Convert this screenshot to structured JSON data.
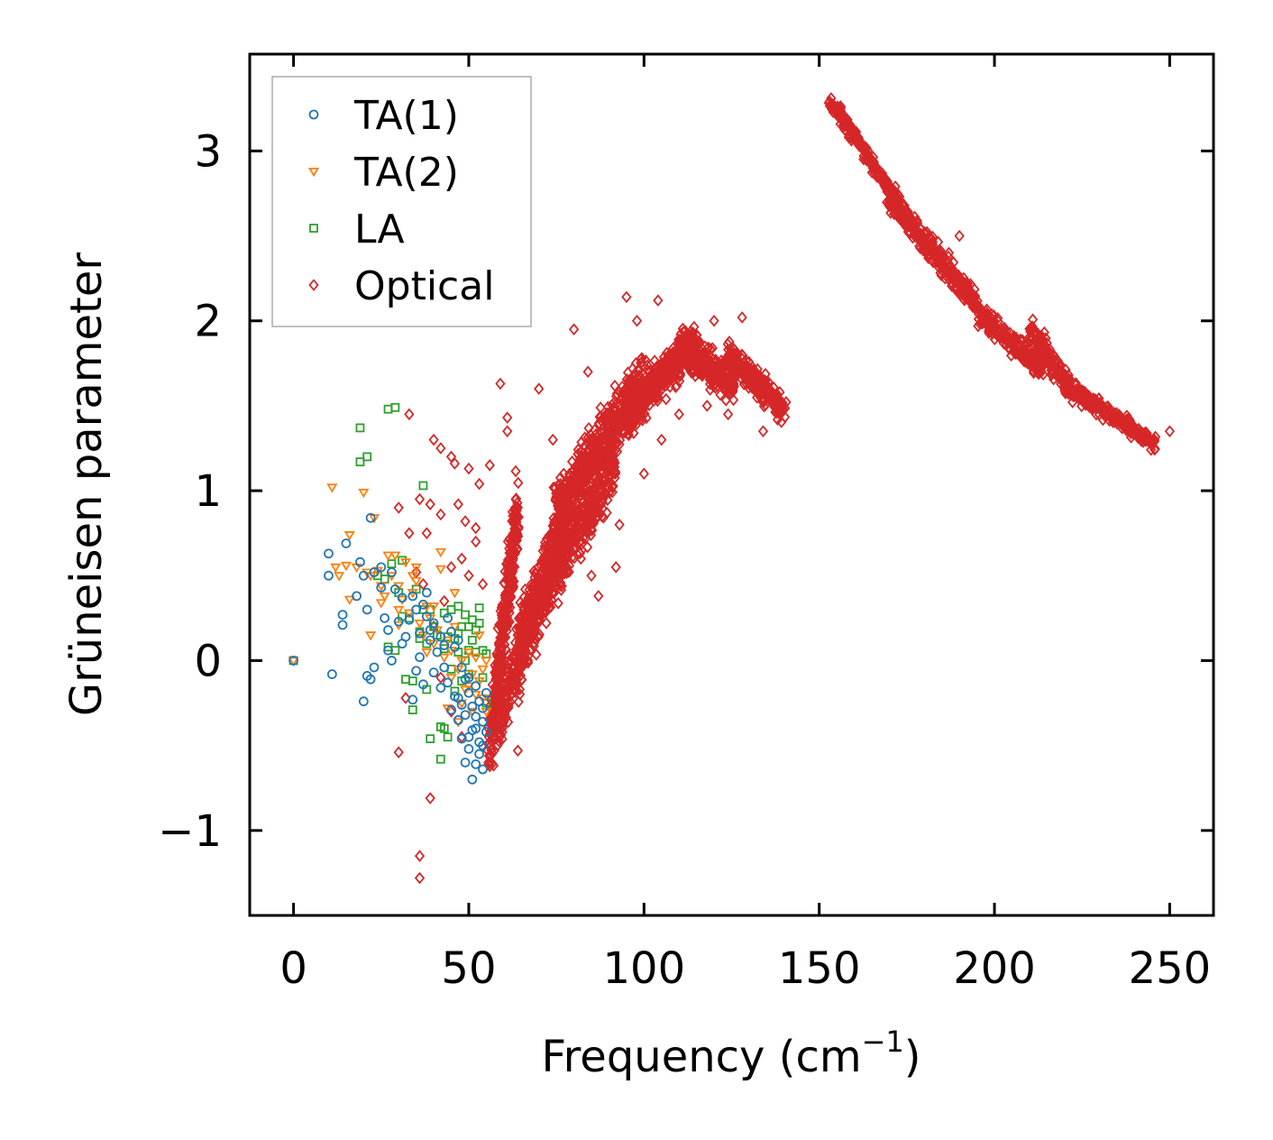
{
  "chart_data": {
    "type": "scatter",
    "title": "",
    "xlabel": "Frequency (cm",
    "xlabel_sup": "−1",
    "xlabel_close": ")",
    "ylabel": "Grüneisen parameter",
    "xlim": [
      -12.5,
      262.5
    ],
    "ylim": [
      -1.5,
      3.57
    ],
    "xticks": [
      0,
      50,
      100,
      150,
      200,
      250
    ],
    "xtick_labels": [
      "0",
      "50",
      "100",
      "150",
      "200",
      "250"
    ],
    "yticks": [
      -1,
      0,
      1,
      2,
      3
    ],
    "ytick_labels": [
      "−1",
      "0",
      "1",
      "2",
      "3"
    ],
    "legend_position": "top-left",
    "series": [
      {
        "name": "TA(1)",
        "marker": "circle",
        "color": "#1f77b4",
        "points": [
          [
            0,
            0
          ],
          [
            10,
            0.63
          ],
          [
            10,
            0.5
          ],
          [
            11,
            -0.08
          ],
          [
            14,
            0.27
          ],
          [
            14,
            0.21
          ],
          [
            15,
            0.69
          ],
          [
            18,
            0.38
          ],
          [
            19,
            0.58
          ],
          [
            20,
            0.5
          ],
          [
            20,
            -0.24
          ],
          [
            21,
            0.3
          ],
          [
            21,
            -0.09
          ],
          [
            22,
            0.84
          ],
          [
            22,
            -0.11
          ],
          [
            23,
            0.52
          ],
          [
            23,
            -0.04
          ],
          [
            25,
            0.55
          ],
          [
            25,
            0.43
          ],
          [
            26,
            0.25
          ],
          [
            27,
            0.18
          ],
          [
            27,
            0.06
          ],
          [
            28,
            0.52
          ],
          [
            28,
            0.0
          ],
          [
            29,
            0.42
          ],
          [
            30,
            0.23
          ],
          [
            31,
            0.37
          ],
          [
            32,
            0.14
          ],
          [
            33,
            0.24
          ],
          [
            34,
            0.38
          ],
          [
            34,
            -0.23
          ],
          [
            35,
            0.3
          ],
          [
            35,
            -0.06
          ],
          [
            36,
            0.16
          ],
          [
            37,
            0.33
          ],
          [
            37,
            -0.14
          ],
          [
            38,
            0.26
          ],
          [
            38,
            0.4
          ],
          [
            39,
            0.12
          ],
          [
            40,
            0.22
          ],
          [
            40,
            -0.07
          ],
          [
            41,
            0.05
          ],
          [
            42,
            0.14
          ],
          [
            42,
            -0.16
          ],
          [
            43,
            -0.04
          ],
          [
            44,
            0.25
          ],
          [
            44,
            -0.13
          ],
          [
            45,
            0.17
          ],
          [
            45,
            -0.29
          ],
          [
            46,
            0.08
          ],
          [
            46,
            -0.21
          ],
          [
            47,
            0.12
          ],
          [
            47,
            -0.35
          ],
          [
            48,
            -0.04
          ],
          [
            48,
            -0.46
          ],
          [
            49,
            -0.11
          ],
          [
            49,
            -0.6
          ],
          [
            50,
            -0.19
          ],
          [
            50,
            -0.52
          ],
          [
            50,
            -0.1
          ],
          [
            51,
            -0.27
          ],
          [
            51,
            -0.7
          ],
          [
            51,
            -0.41
          ],
          [
            52,
            -0.33
          ],
          [
            52,
            -0.61
          ],
          [
            52,
            -0.15
          ],
          [
            53,
            -0.48
          ],
          [
            53,
            -0.24
          ],
          [
            53,
            -0.55
          ],
          [
            54,
            -0.36
          ],
          [
            54,
            -0.64
          ],
          [
            54,
            -0.28
          ],
          [
            55,
            -0.42
          ],
          [
            55,
            -0.19
          ],
          [
            49,
            -0.32
          ],
          [
            47,
            -0.22
          ],
          [
            43,
            0.09
          ],
          [
            39,
            0.18
          ],
          [
            36,
            0.02
          ],
          [
            31,
            0.1
          ],
          [
            48,
            -0.26
          ],
          [
            52,
            -0.4
          ],
          [
            50,
            -0.45
          ],
          [
            54,
            -0.5
          ]
        ]
      },
      {
        "name": "TA(2)",
        "marker": "triangle-down",
        "color": "#ff7f0e",
        "points": [
          [
            0,
            0
          ],
          [
            11,
            1.02
          ],
          [
            12,
            0.55
          ],
          [
            13,
            0.5
          ],
          [
            15,
            0.56
          ],
          [
            16,
            0.74
          ],
          [
            16,
            0.36
          ],
          [
            18,
            0.55
          ],
          [
            20,
            0.99
          ],
          [
            21,
            0.52
          ],
          [
            22,
            0.5
          ],
          [
            22,
            0.15
          ],
          [
            23,
            0.84
          ],
          [
            24,
            0.53
          ],
          [
            25,
            0.44
          ],
          [
            25,
            0.34
          ],
          [
            26,
            0.38
          ],
          [
            27,
            0.62
          ],
          [
            28,
            0.5
          ],
          [
            29,
            0.62
          ],
          [
            30,
            0.44
          ],
          [
            30,
            0.21
          ],
          [
            31,
            0.36
          ],
          [
            32,
            0.58
          ],
          [
            33,
            0.28
          ],
          [
            34,
            0.5
          ],
          [
            34,
            0.4
          ],
          [
            35,
            0.55
          ],
          [
            36,
            0.22
          ],
          [
            37,
            0.15
          ],
          [
            38,
            0.32
          ],
          [
            38,
            0.05
          ],
          [
            39,
            0.25
          ],
          [
            40,
            0.1
          ],
          [
            41,
            0.18
          ],
          [
            42,
            0.64
          ],
          [
            42,
            0.54
          ],
          [
            43,
            0.02
          ],
          [
            44,
            0.12
          ],
          [
            44,
            -0.28
          ],
          [
            45,
            0.06
          ],
          [
            45,
            -0.1
          ],
          [
            46,
            0.2
          ],
          [
            47,
            -0.05
          ],
          [
            47,
            -0.36
          ],
          [
            48,
            0.0
          ],
          [
            48,
            -0.25
          ],
          [
            49,
            -0.17
          ],
          [
            50,
            0.05
          ],
          [
            50,
            -0.15
          ],
          [
            51,
            -0.08
          ],
          [
            51,
            -0.3
          ],
          [
            52,
            0.02
          ],
          [
            52,
            -0.2
          ],
          [
            53,
            -0.12
          ],
          [
            53,
            0.15
          ],
          [
            54,
            -0.22
          ],
          [
            54,
            -0.05
          ],
          [
            55,
            0.0
          ],
          [
            55,
            -0.3
          ],
          [
            46,
            0.4
          ],
          [
            40,
            0.32
          ],
          [
            35,
            0.47
          ],
          [
            30,
            0.3
          ]
        ]
      },
      {
        "name": "LA",
        "marker": "square",
        "color": "#2ca02c",
        "points": [
          [
            0,
            0
          ],
          [
            19,
            1.37
          ],
          [
            19,
            1.17
          ],
          [
            21,
            1.2
          ],
          [
            27,
            1.48
          ],
          [
            29,
            1.49
          ],
          [
            24,
            0.5
          ],
          [
            26,
            0.48
          ],
          [
            27,
            0.08
          ],
          [
            28,
            0.57
          ],
          [
            29,
            0.06
          ],
          [
            30,
            0.4
          ],
          [
            31,
            0.59
          ],
          [
            31,
            0.26
          ],
          [
            32,
            -0.11
          ],
          [
            33,
            0.25
          ],
          [
            34,
            -0.12
          ],
          [
            34,
            -0.29
          ],
          [
            35,
            0.42
          ],
          [
            36,
            0.17
          ],
          [
            37,
            1.03
          ],
          [
            37,
            0.3
          ],
          [
            38,
            0.1
          ],
          [
            39,
            0.3
          ],
          [
            39,
            -0.46
          ],
          [
            40,
            0.2
          ],
          [
            41,
            0.15
          ],
          [
            42,
            -0.58
          ],
          [
            42,
            -0.39
          ],
          [
            43,
            0.28
          ],
          [
            43,
            -0.4
          ],
          [
            44,
            0.14
          ],
          [
            44,
            -0.45
          ],
          [
            45,
            0.3
          ],
          [
            45,
            -0.05
          ],
          [
            46,
            0.13
          ],
          [
            46,
            -0.18
          ],
          [
            47,
            0.32
          ],
          [
            47,
            0.05
          ],
          [
            48,
            0.2
          ],
          [
            48,
            -0.12
          ],
          [
            49,
            0.27
          ],
          [
            49,
            0.0
          ],
          [
            50,
            0.2
          ],
          [
            50,
            -0.08
          ],
          [
            51,
            0.24
          ],
          [
            51,
            0.12
          ],
          [
            52,
            0.18
          ],
          [
            52,
            0.05
          ],
          [
            53,
            0.22
          ],
          [
            53,
            0.31
          ],
          [
            54,
            0.06
          ],
          [
            54,
            -0.1
          ],
          [
            55,
            0.04
          ],
          [
            55,
            -0.25
          ],
          [
            43,
            0.07
          ],
          [
            38,
            -0.17
          ],
          [
            36,
            0.13
          ],
          [
            50,
            0.06
          ],
          [
            47,
            0.16
          ]
        ]
      },
      {
        "name": "Optical",
        "marker": "diamond",
        "color": "#d62728",
        "points": [],
        "generator": {
          "bands": [
            {
              "x0": 56,
              "x1": 64,
              "y0": -0.5,
              "y1": 0.9,
              "jitter": 0.25,
              "count": 380
            },
            {
              "x0": 58,
              "x1": 78,
              "y0": -0.35,
              "y1": 0.85,
              "jitter": 0.32,
              "count": 460
            },
            {
              "x0": 64,
              "x1": 92,
              "y0": 0.15,
              "y1": 1.2,
              "jitter": 0.3,
              "count": 520
            },
            {
              "x0": 75,
              "x1": 100,
              "y0": 0.9,
              "y1": 1.65,
              "jitter": 0.25,
              "count": 560
            },
            {
              "x0": 95,
              "x1": 115,
              "y0": 1.45,
              "y1": 1.9,
              "jitter": 0.18,
              "count": 420
            },
            {
              "x0": 110,
              "x1": 126,
              "y0": 1.85,
              "y1": 1.62,
              "jitter": 0.15,
              "count": 300
            },
            {
              "x0": 124,
              "x1": 140,
              "y0": 1.8,
              "y1": 1.48,
              "jitter": 0.13,
              "count": 220
            },
            {
              "x0": 153,
              "x1": 172,
              "y0": 3.3,
              "y1": 2.72,
              "jitter": 0.06,
              "count": 200
            },
            {
              "x0": 170,
              "x1": 195,
              "y0": 2.72,
              "y1": 2.1,
              "jitter": 0.11,
              "count": 280
            },
            {
              "x0": 195,
              "x1": 214,
              "y0": 2.05,
              "y1": 1.72,
              "jitter": 0.09,
              "count": 200
            },
            {
              "x0": 210,
              "x1": 222,
              "y0": 1.95,
              "y1": 1.6,
              "jitter": 0.12,
              "count": 160
            },
            {
              "x0": 222,
              "x1": 246,
              "y0": 1.6,
              "y1": 1.27,
              "jitter": 0.07,
              "count": 220
            }
          ],
          "outliers": [
            [
              36,
              -1.28
            ],
            [
              36,
              -1.15
            ],
            [
              39,
              -0.81
            ],
            [
              30,
              -0.54
            ],
            [
              32,
              -0.22
            ],
            [
              33,
              1.45
            ],
            [
              30,
              0.9
            ],
            [
              33,
              0.75
            ],
            [
              35,
              0.52
            ],
            [
              36,
              0.95
            ],
            [
              38,
              0.75
            ],
            [
              39,
              0.92
            ],
            [
              40,
              1.3
            ],
            [
              42,
              1.25
            ],
            [
              42,
              0.86
            ],
            [
              45,
              1.2
            ],
            [
              46,
              1.16
            ],
            [
              47,
              0.92
            ],
            [
              49,
              0.82
            ],
            [
              50,
              1.13
            ],
            [
              52,
              0.78
            ],
            [
              53,
              1.04
            ],
            [
              56,
              1.15
            ],
            [
              59,
              1.63
            ],
            [
              61,
              1.43
            ],
            [
              61,
              1.35
            ],
            [
              37,
              0.45
            ],
            [
              40,
              0.2
            ],
            [
              43,
              0.35
            ],
            [
              45,
              0.55
            ],
            [
              48,
              0.6
            ],
            [
              50,
              0.5
            ],
            [
              52,
              0.7
            ],
            [
              54,
              0.45
            ],
            [
              42,
              -0.1
            ],
            [
              45,
              -0.3
            ],
            [
              48,
              -0.45
            ],
            [
              64,
              -0.53
            ],
            [
              70,
              1.6
            ],
            [
              74,
              1.3
            ],
            [
              80,
              1.95
            ],
            [
              84,
              1.7
            ],
            [
              87,
              0.38
            ],
            [
              92,
              0.55
            ],
            [
              95,
              2.14
            ],
            [
              98,
              2.0
            ],
            [
              104,
              2.12
            ],
            [
              120,
              2.0
            ],
            [
              128,
              2.02
            ],
            [
              134,
              1.35
            ],
            [
              93,
              0.8
            ],
            [
              85,
              0.5
            ],
            [
              82,
              0.6
            ],
            [
              78,
              0.7
            ],
            [
              88,
              1.0
            ],
            [
              100,
              1.1
            ],
            [
              105,
              1.3
            ],
            [
              110,
              1.45
            ],
            [
              118,
              1.5
            ],
            [
              124,
              1.45
            ],
            [
              250,
              1.35
            ],
            [
              242,
              1.3
            ],
            [
              211,
              1.95
            ],
            [
              190,
              2.5
            ],
            [
              187,
              2.4
            ],
            [
              203,
              1.9
            ]
          ]
        }
      }
    ]
  }
}
